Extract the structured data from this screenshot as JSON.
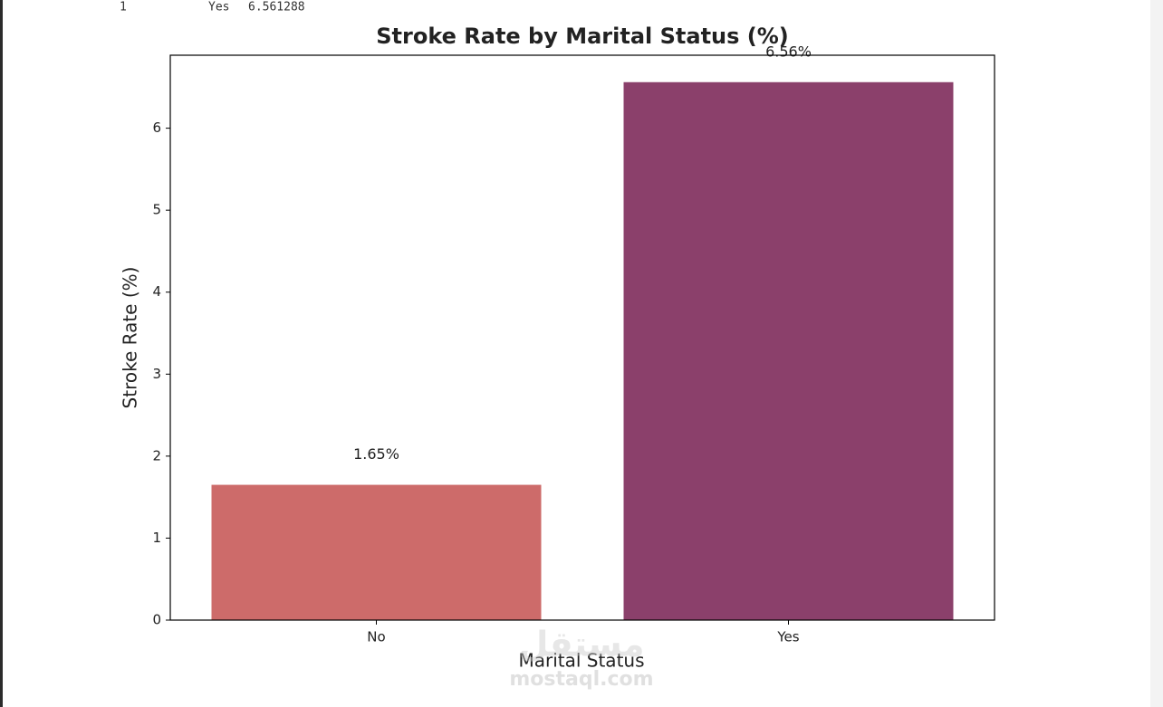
{
  "console_output": {
    "index": "1",
    "label": "Yes",
    "value": 6.561288
  },
  "watermark": {
    "arabic": "مستقل",
    "site": "mostaql.com"
  },
  "chart_data": {
    "type": "bar",
    "title": "Stroke Rate by Marital Status (%)",
    "x_label": "Marital Status",
    "y_label": "Stroke Rate (%)",
    "categories": [
      "No",
      "Yes"
    ],
    "values": [
      1.65,
      6.561288
    ],
    "value_labels": [
      "1.65%",
      "6.56%"
    ],
    "colors": [
      "#cd6b6a",
      "#8b406b"
    ],
    "ylim": [
      0,
      6.89
    ],
    "yticks": [
      0,
      1,
      2,
      3,
      4,
      5,
      6
    ],
    "grid": false
  }
}
